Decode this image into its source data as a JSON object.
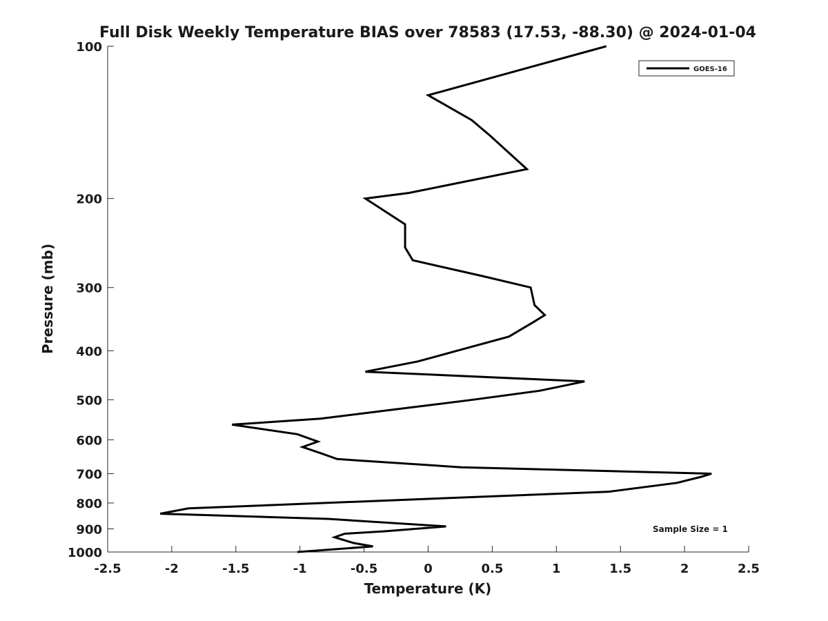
{
  "chart_data": {
    "type": "line",
    "title": "Full Disk Weekly Temperature BIAS over 78583 (17.53, -88.30) @ 2024-01-04",
    "xlabel": "Temperature (K)",
    "ylabel": "Pressure (mb)",
    "xlim": [
      -2.5,
      2.5
    ],
    "ylim": [
      1000,
      100
    ],
    "y_scale": "log",
    "y_reversed": true,
    "x_ticks": [
      -2.5,
      -2,
      -1.5,
      -1,
      -0.5,
      0,
      0.5,
      1,
      1.5,
      2,
      2.5
    ],
    "x_tick_labels": [
      "-2.5",
      "-2",
      "-1.5",
      "-1",
      "-0.5",
      "0",
      "0.5",
      "1",
      "1.5",
      "2",
      "2.5"
    ],
    "y_ticks": [
      100,
      200,
      300,
      400,
      500,
      600,
      700,
      800,
      900,
      1000
    ],
    "y_tick_labels": [
      "100",
      "200",
      "300",
      "400",
      "500",
      "600",
      "700",
      "800",
      "900",
      "1000"
    ],
    "grid": false,
    "legend_position": "top-right",
    "annotation": "Sample Size = 1",
    "line_color": "#000000",
    "series": [
      {
        "name": "GOES-16",
        "points": [
          {
            "x": 1.39,
            "p": 100
          },
          {
            "x": 0.0,
            "p": 125
          },
          {
            "x": 0.34,
            "p": 140
          },
          {
            "x": 0.48,
            "p": 150
          },
          {
            "x": 0.77,
            "p": 175
          },
          {
            "x": -0.15,
            "p": 195
          },
          {
            "x": -0.49,
            "p": 200
          },
          {
            "x": -0.18,
            "p": 225
          },
          {
            "x": -0.18,
            "p": 250
          },
          {
            "x": -0.12,
            "p": 265
          },
          {
            "x": 0.43,
            "p": 285
          },
          {
            "x": 0.8,
            "p": 300
          },
          {
            "x": 0.83,
            "p": 325
          },
          {
            "x": 0.91,
            "p": 340
          },
          {
            "x": 0.83,
            "p": 350
          },
          {
            "x": 0.63,
            "p": 375
          },
          {
            "x": -0.08,
            "p": 420
          },
          {
            "x": -0.49,
            "p": 440
          },
          {
            "x": 1.22,
            "p": 460
          },
          {
            "x": 0.87,
            "p": 480
          },
          {
            "x": 0.35,
            "p": 500
          },
          {
            "x": -0.19,
            "p": 520
          },
          {
            "x": -0.84,
            "p": 545
          },
          {
            "x": -1.53,
            "p": 560
          },
          {
            "x": -1.02,
            "p": 585
          },
          {
            "x": -0.86,
            "p": 605
          },
          {
            "x": -0.98,
            "p": 620
          },
          {
            "x": -0.82,
            "p": 640
          },
          {
            "x": -0.71,
            "p": 655
          },
          {
            "x": 0.26,
            "p": 680
          },
          {
            "x": 2.21,
            "p": 700
          },
          {
            "x": 2.13,
            "p": 710
          },
          {
            "x": 1.94,
            "p": 730
          },
          {
            "x": 1.41,
            "p": 760
          },
          {
            "x": -1.87,
            "p": 820
          },
          {
            "x": -2.09,
            "p": 840
          },
          {
            "x": -0.78,
            "p": 860
          },
          {
            "x": 0.14,
            "p": 890
          },
          {
            "x": -0.34,
            "p": 910
          },
          {
            "x": -0.65,
            "p": 920
          },
          {
            "x": -0.73,
            "p": 935
          },
          {
            "x": -0.58,
            "p": 960
          },
          {
            "x": -0.43,
            "p": 975
          },
          {
            "x": -1.02,
            "p": 1000
          }
        ]
      }
    ]
  }
}
